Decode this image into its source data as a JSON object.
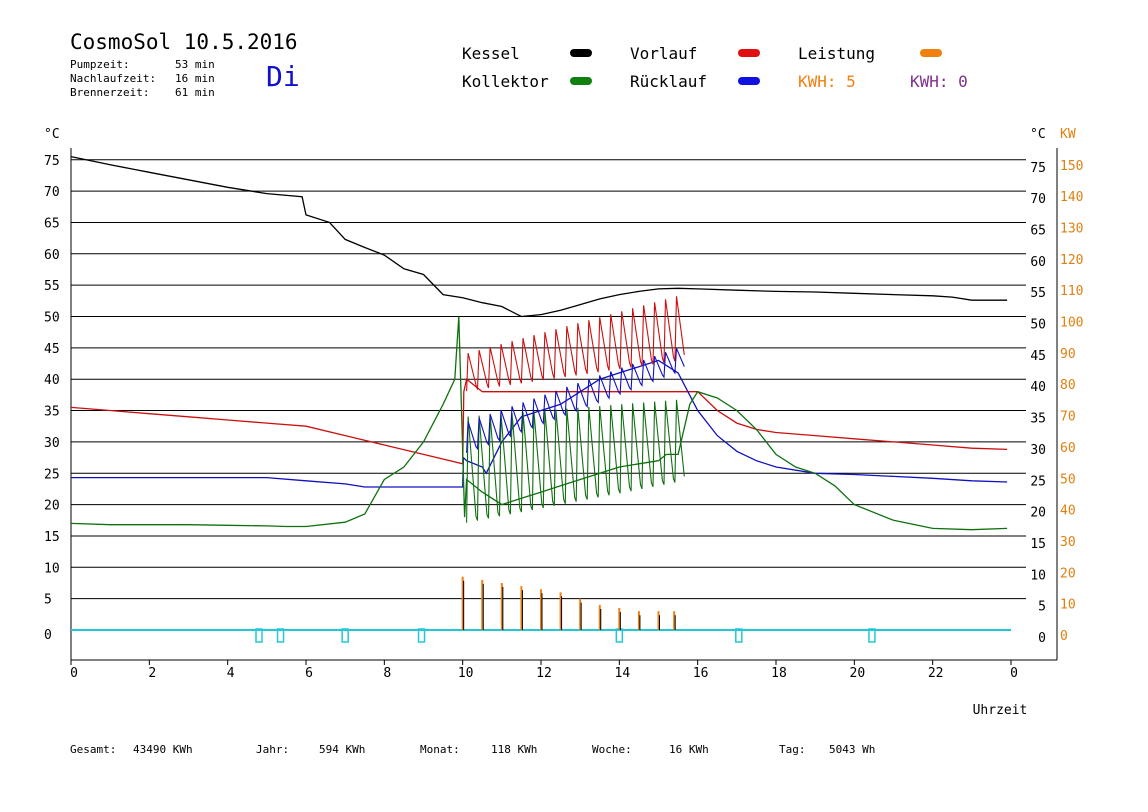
{
  "header": {
    "title": "CosmoSol 10.5.2016",
    "weekday": "Di",
    "stats": [
      {
        "label": "Pumpzeit:",
        "value": "53 min"
      },
      {
        "label": "Nachlaufzeit:",
        "value": "16 min"
      },
      {
        "label": "Brennerzeit:",
        "value": "61 min"
      }
    ]
  },
  "legend": {
    "items": [
      {
        "label": "Kessel",
        "color": "#000000"
      },
      {
        "label": "Vorlauf",
        "color": "#e01010"
      },
      {
        "label": "Leistung",
        "color": "#f08010"
      },
      {
        "label": "Kollektor",
        "color": "#108010"
      },
      {
        "label": "Rücklauf",
        "color": "#1010e0"
      }
    ],
    "kwh_orange": "KWH: 5",
    "kwh_purple": "KWH: 0"
  },
  "footer": {
    "gesamt_label": "Gesamt:",
    "gesamt_value": "43490 KWh",
    "jahr_label": "Jahr:",
    "jahr_value": "594 KWh",
    "monat_label": "Monat:",
    "monat_value": "118 KWh",
    "woche_label": "Woche:",
    "woche_value": "16 KWh",
    "tag_label": "Tag:",
    "tag_value": "5043 Wh"
  },
  "chart_data": {
    "type": "line",
    "title": "CosmoSol 10.5.2016",
    "xlabel": "Uhrzeit",
    "ylabel": "°C",
    "y2label": "KW",
    "xlim": [
      0,
      24
    ],
    "ylim": [
      -5,
      80
    ],
    "x_ticks": [
      "0",
      "2",
      "4",
      "6",
      "8",
      "10",
      "12",
      "14",
      "16",
      "18",
      "20",
      "22",
      "0"
    ],
    "y_ticks": [
      0,
      5,
      10,
      15,
      20,
      25,
      30,
      35,
      40,
      45,
      50,
      55,
      60,
      65,
      70,
      75
    ],
    "y2_ticks": [
      0,
      10,
      20,
      30,
      40,
      50,
      60,
      70,
      80,
      90,
      100,
      110,
      120,
      130,
      140,
      150
    ],
    "grid": true,
    "series": [
      {
        "name": "Kessel",
        "color": "#000000",
        "x": [
          0,
          1,
          2,
          3,
          4,
          5,
          5.9,
          6.0,
          6.6,
          7.0,
          7.5,
          8.0,
          8.5,
          9.0,
          9.5,
          10,
          10.5,
          11,
          11.4,
          11.5,
          12,
          12.5,
          13,
          13.5,
          14,
          14.5,
          15,
          15.5,
          16,
          17,
          18,
          19,
          20,
          21,
          22,
          22.5,
          23,
          23.9
        ],
        "y": [
          75.5,
          74.2,
          73,
          71.8,
          70.6,
          69.6,
          69.1,
          66.2,
          65,
          62.3,
          61,
          59.8,
          57.6,
          56.7,
          53.5,
          53,
          52.2,
          51.6,
          50.3,
          50,
          50.3,
          51,
          51.9,
          52.8,
          53.5,
          54,
          54.4,
          54.5,
          54.4,
          54.2,
          54,
          53.9,
          53.7,
          53.5,
          53.3,
          53.1,
          52.6,
          52.6
        ]
      },
      {
        "name": "Vorlauf",
        "color": "#cc1010",
        "x": [
          0,
          1,
          2,
          3,
          4,
          5,
          6,
          7,
          8,
          9,
          10,
          10.03,
          10.1,
          10.5,
          16,
          16.5,
          17,
          17.5,
          18,
          19,
          20,
          21,
          22,
          23,
          23.9
        ],
        "y": [
          35.5,
          35,
          34.5,
          34,
          33.5,
          33,
          32.5,
          31,
          29.5,
          28,
          26.5,
          38,
          40,
          38,
          38,
          35,
          33,
          32,
          31.5,
          31,
          30.5,
          30,
          29.5,
          29,
          28.8
        ]
      },
      {
        "name": "Rücklauf",
        "color": "#1010c0",
        "x": [
          0,
          1,
          2,
          3,
          4,
          5,
          6,
          7,
          7.5,
          8,
          9,
          10,
          10.02,
          10.1,
          10.5,
          10.6,
          11,
          11.5,
          12,
          12.5,
          13,
          13.5,
          14,
          14.5,
          15,
          15.5,
          16,
          16.5,
          17,
          17.5,
          18,
          19,
          20,
          21,
          22,
          23,
          23.9
        ],
        "y": [
          24.3,
          24.3,
          24.3,
          24.3,
          24.3,
          24.3,
          23.8,
          23.3,
          22.8,
          22.8,
          22.8,
          22.8,
          27.5,
          27,
          26,
          25,
          30,
          34,
          35,
          36,
          38,
          40,
          41,
          42,
          43,
          41,
          35,
          31,
          28.5,
          27,
          26,
          25,
          24.8,
          24.5,
          24.2,
          23.8,
          23.6
        ]
      },
      {
        "name": "Kollektor",
        "color": "#107010",
        "x": [
          0,
          1,
          2,
          3,
          4,
          5,
          5.5,
          6,
          7,
          7.5,
          8,
          8.5,
          9,
          9.5,
          9.8,
          9.9,
          10.05,
          10.1,
          10.5,
          11,
          11.5,
          12,
          12.5,
          13,
          13.5,
          14,
          14.5,
          15,
          15.2,
          15.5,
          15.8,
          16,
          16.5,
          17,
          17.5,
          18,
          18.5,
          19,
          19.5,
          20,
          21,
          22,
          23,
          23.9
        ],
        "y": [
          17,
          16.8,
          16.8,
          16.8,
          16.7,
          16.6,
          16.5,
          16.5,
          17.2,
          18.5,
          24,
          26,
          30,
          36,
          40,
          50,
          18,
          24,
          22,
          20,
          21,
          22,
          23,
          24,
          25,
          26,
          26.5,
          27,
          28,
          28,
          36,
          38,
          37,
          35,
          32,
          28,
          26,
          25,
          23,
          20,
          17.5,
          16.2,
          16,
          16.2
        ]
      },
      {
        "name": "Leistung",
        "color": "#f08010",
        "x": [
          10.0,
          10.5,
          11.0,
          11.5,
          12.0,
          12.5,
          13.0,
          13.5,
          14.0,
          14.5,
          15.0,
          15.4
        ],
        "y": [
          8.5,
          8,
          7.5,
          7,
          6.5,
          6,
          5,
          4,
          3.5,
          3,
          3,
          3
        ]
      }
    ],
    "burner_x": [
      4.8,
      5.35,
      7.0,
      8.95,
      14.0,
      17.05,
      20.45
    ]
  }
}
